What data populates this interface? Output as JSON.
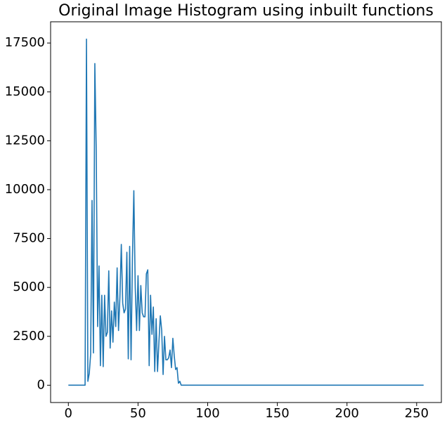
{
  "chart_data": {
    "type": "line",
    "title": "Original Image Histogram using inbuilt functions",
    "x": [
      0,
      1,
      2,
      3,
      4,
      5,
      6,
      7,
      8,
      9,
      10,
      11,
      12,
      13,
      14,
      15,
      16,
      17,
      18,
      19,
      20,
      21,
      22,
      23,
      24,
      25,
      26,
      27,
      28,
      29,
      30,
      31,
      32,
      33,
      34,
      35,
      36,
      37,
      38,
      39,
      40,
      41,
      42,
      43,
      44,
      45,
      46,
      47,
      48,
      49,
      50,
      51,
      52,
      53,
      54,
      55,
      56,
      57,
      58,
      59,
      60,
      61,
      62,
      63,
      64,
      65,
      66,
      67,
      68,
      69,
      70,
      71,
      72,
      73,
      74,
      75,
      76,
      77,
      78,
      79,
      80,
      81,
      82,
      83,
      84,
      85,
      86,
      87,
      88,
      89,
      90,
      91,
      92,
      93,
      94,
      95,
      96,
      97,
      98,
      99,
      100,
      101,
      102,
      103,
      104,
      105,
      106,
      107,
      108,
      109,
      110,
      111,
      112,
      113,
      114,
      115,
      116,
      117,
      118,
      119,
      120,
      121,
      122,
      123,
      124,
      125,
      126,
      127,
      128,
      129,
      130,
      131,
      132,
      133,
      134,
      135,
      136,
      137,
      138,
      139,
      140,
      141,
      142,
      143,
      144,
      145,
      146,
      147,
      148,
      149,
      150,
      151,
      152,
      153,
      154,
      155,
      156,
      157,
      158,
      159,
      160,
      161,
      162,
      163,
      164,
      165,
      166,
      167,
      168,
      169,
      170,
      171,
      172,
      173,
      174,
      175,
      176,
      177,
      178,
      179,
      180,
      181,
      182,
      183,
      184,
      185,
      186,
      187,
      188,
      189,
      190,
      191,
      192,
      193,
      194,
      195,
      196,
      197,
      198,
      199,
      200,
      201,
      202,
      203,
      204,
      205,
      206,
      207,
      208,
      209,
      210,
      211,
      212,
      213,
      214,
      215,
      216,
      217,
      218,
      219,
      220,
      221,
      222,
      223,
      224,
      225,
      226,
      227,
      228,
      229,
      230,
      231,
      232,
      233,
      234,
      235,
      236,
      237,
      238,
      239,
      240,
      241,
      242,
      243,
      244,
      245,
      246,
      247,
      248,
      249,
      250,
      251,
      252,
      253,
      254,
      255
    ],
    "values": [
      0,
      0,
      0,
      0,
      0,
      0,
      0,
      0,
      0,
      0,
      0,
      0,
      0,
      17700,
      200,
      600,
      1600,
      9450,
      1650,
      16450,
      12000,
      3000,
      6100,
      1000,
      4600,
      950,
      4600,
      2500,
      2700,
      5850,
      1900,
      3800,
      2200,
      4250,
      3000,
      6000,
      2800,
      4500,
      7200,
      4200,
      3700,
      3900,
      6800,
      1350,
      7100,
      1300,
      6500,
      9950,
      5000,
      2800,
      5600,
      2800,
      5100,
      3700,
      3500,
      3500,
      5700,
      5900,
      1000,
      4600,
      2600,
      4000,
      700,
      3400,
      700,
      2200,
      3550,
      2800,
      550,
      2500,
      1300,
      1300,
      1400,
      1800,
      900,
      2400,
      1500,
      800,
      900,
      100,
      200,
      0,
      0,
      0,
      0,
      0,
      0,
      0,
      0,
      0,
      0,
      0,
      0,
      0,
      0,
      0,
      0,
      0,
      0,
      0,
      0,
      0,
      0,
      0,
      0,
      0,
      0,
      0,
      0,
      0,
      0,
      0,
      0,
      0,
      0,
      0,
      0,
      0,
      0,
      0,
      0,
      0,
      0,
      0,
      0,
      0,
      0,
      0,
      0,
      0,
      0,
      0,
      0,
      0,
      0,
      0,
      0,
      0,
      0,
      0,
      0,
      0,
      0,
      0,
      0,
      0,
      0,
      0,
      0,
      0,
      0,
      0,
      0,
      0,
      0,
      0,
      0,
      0,
      0,
      0,
      0,
      0,
      0,
      0,
      0,
      0,
      0,
      0,
      0,
      0,
      0,
      0,
      0,
      0,
      0,
      0,
      0,
      0,
      0,
      0,
      0,
      0,
      0,
      0,
      0,
      0,
      0,
      0,
      0,
      0,
      0,
      0,
      0,
      0,
      0,
      0,
      0,
      0,
      0,
      0,
      0,
      0,
      0,
      0,
      0,
      0,
      0,
      0,
      0,
      0,
      0,
      0,
      0,
      0,
      0,
      0,
      0,
      0,
      0,
      0,
      0,
      0,
      0,
      0,
      0,
      0,
      0,
      0,
      0,
      0,
      0,
      0,
      0,
      0,
      0,
      0,
      0,
      0,
      0,
      0,
      0,
      0,
      0,
      0,
      0,
      0,
      0,
      0,
      0,
      0,
      0,
      0,
      0,
      0,
      0,
      0
    ],
    "color": "#1f77b4",
    "xlim": [
      -12.75,
      267.75
    ],
    "xticks": [
      0,
      50,
      100,
      150,
      200,
      250
    ],
    "ylim": [
      -885,
      18585
    ],
    "yticks": [
      0,
      2500,
      5000,
      7500,
      10000,
      12500,
      15000,
      17500
    ]
  }
}
